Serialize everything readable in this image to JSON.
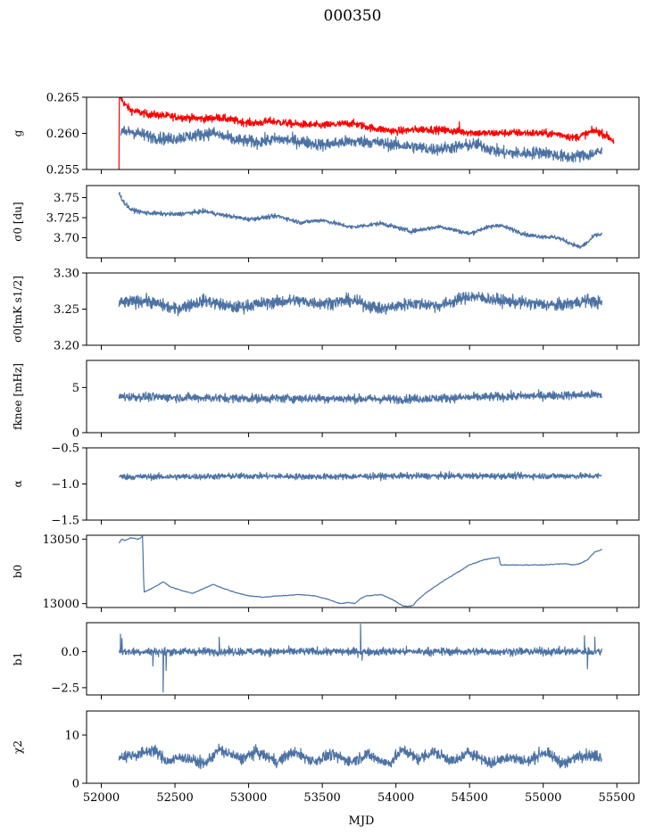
{
  "figure": {
    "title": "000350",
    "xlabel": "MJD"
  },
  "chart_data": [
    {
      "id": "g",
      "type": "line",
      "ylabel": "g",
      "xlim": [
        51900,
        55650
      ],
      "ylim": [
        0.255,
        0.265
      ],
      "yticks": [
        0.255,
        0.26,
        0.265
      ],
      "ytick_labels": [
        "0.255",
        "0.260",
        "0.265"
      ],
      "series": [
        {
          "color": "#ff0000",
          "style": "noisy",
          "x": [
            52120,
            52130,
            52160,
            52200,
            52300,
            52500,
            52700,
            52800,
            52950,
            53050,
            53150,
            53300,
            53500,
            53700,
            53850,
            54000,
            54200,
            54400,
            54600,
            54800,
            55000,
            55100,
            55150,
            55200,
            55250,
            55300,
            55350,
            55400,
            55450,
            55480
          ],
          "y": [
            0.2645,
            0.265,
            0.264,
            0.2632,
            0.2627,
            0.2623,
            0.262,
            0.2622,
            0.2616,
            0.2614,
            0.2617,
            0.2613,
            0.2611,
            0.2614,
            0.2607,
            0.2603,
            0.2606,
            0.2603,
            0.26,
            0.2601,
            0.26,
            0.2599,
            0.2597,
            0.2594,
            0.2596,
            0.26,
            0.2604,
            0.26,
            0.2594,
            0.2589
          ],
          "noise": 0.0005,
          "spikes": [
            [
              52120,
              0.255
            ],
            [
              52125,
              0.265
            ],
            [
              54330,
              0.261
            ],
            [
              54430,
              0.2616
            ]
          ]
        },
        {
          "color": "#4c72a4",
          "style": "noisy",
          "x": [
            52130,
            52200,
            52300,
            52450,
            52600,
            52750,
            52900,
            53050,
            53200,
            53350,
            53500,
            53650,
            53800,
            53950,
            54100,
            54250,
            54400,
            54550,
            54700,
            54850,
            55000,
            55150,
            55300,
            55400
          ],
          "y": [
            0.26,
            0.2603,
            0.2597,
            0.2592,
            0.2596,
            0.2601,
            0.2591,
            0.2588,
            0.2592,
            0.2589,
            0.2584,
            0.2588,
            0.2589,
            0.2585,
            0.2582,
            0.2578,
            0.2581,
            0.2585,
            0.2574,
            0.2572,
            0.2574,
            0.2567,
            0.257,
            0.2575
          ],
          "noise": 0.0008
        }
      ]
    },
    {
      "id": "sigma0_du",
      "type": "line",
      "ylabel": "σ0 [du]",
      "xlim": [
        51900,
        55650
      ],
      "ylim": [
        3.675,
        3.765
      ],
      "yticks": [
        3.7,
        3.725,
        3.75
      ],
      "ytick_labels": [
        "3.70",
        "3.725",
        "3.75"
      ],
      "series": [
        {
          "color": "#4c72a4",
          "style": "noisy",
          "x": [
            52120,
            52150,
            52200,
            52300,
            52500,
            52700,
            52800,
            53000,
            53200,
            53350,
            53500,
            53700,
            53900,
            54100,
            54300,
            54500,
            54600,
            54700,
            54900,
            55100,
            55200,
            55250,
            55300,
            55350,
            55400
          ],
          "y": [
            3.756,
            3.745,
            3.735,
            3.731,
            3.729,
            3.733,
            3.729,
            3.723,
            3.727,
            3.719,
            3.722,
            3.713,
            3.718,
            3.708,
            3.714,
            3.705,
            3.712,
            3.716,
            3.703,
            3.7,
            3.692,
            3.688,
            3.694,
            3.703,
            3.704
          ],
          "noise": 0.0025
        }
      ]
    },
    {
      "id": "sigma0_mk",
      "type": "line",
      "ylabel": "σ0[mK s1/2]",
      "xlim": [
        51900,
        55650
      ],
      "ylim": [
        3.2,
        3.3
      ],
      "yticks": [
        3.2,
        3.25,
        3.3
      ],
      "ytick_labels": [
        "3.20",
        "3.25",
        "3.30"
      ],
      "series": [
        {
          "color": "#4c72a4",
          "style": "noisy",
          "x": [
            52120,
            52300,
            52500,
            52700,
            52900,
            53100,
            53300,
            53500,
            53700,
            53900,
            54100,
            54300,
            54500,
            54700,
            54900,
            55100,
            55300,
            55400
          ],
          "y": [
            3.258,
            3.262,
            3.25,
            3.262,
            3.252,
            3.258,
            3.262,
            3.258,
            3.262,
            3.25,
            3.258,
            3.255,
            3.268,
            3.262,
            3.258,
            3.255,
            3.262,
            3.258
          ],
          "noise": 0.008
        }
      ]
    },
    {
      "id": "fknee",
      "type": "line",
      "ylabel": "fknee [mHz]",
      "xlim": [
        51900,
        55650
      ],
      "ylim": [
        0,
        8
      ],
      "yticks": [
        0,
        5
      ],
      "ytick_labels": [
        "0",
        "5"
      ],
      "series": [
        {
          "color": "#4c72a4",
          "style": "noisy",
          "x": [
            52120,
            52500,
            53000,
            53500,
            54000,
            54500,
            55000,
            55400
          ],
          "y": [
            4.0,
            3.9,
            3.8,
            3.8,
            3.7,
            3.9,
            4.1,
            4.2
          ],
          "noise": 0.45
        }
      ]
    },
    {
      "id": "alpha",
      "type": "line",
      "ylabel": "α",
      "xlim": [
        51900,
        55650
      ],
      "ylim": [
        -1.5,
        -0.5
      ],
      "yticks": [
        -1.5,
        -1.0,
        -0.5
      ],
      "ytick_labels": [
        "−1.5",
        "−1.0",
        "−0.5"
      ],
      "series": [
        {
          "color": "#4c72a4",
          "style": "noisy",
          "x": [
            52120,
            52500,
            53000,
            53500,
            54000,
            54500,
            55000,
            55400
          ],
          "y": [
            -0.9,
            -0.9,
            -0.89,
            -0.9,
            -0.89,
            -0.89,
            -0.89,
            -0.89
          ],
          "noise": 0.04
        }
      ]
    },
    {
      "id": "b0",
      "type": "line",
      "ylabel": "b0",
      "xlim": [
        51900,
        55650
      ],
      "ylim": [
        12997,
        13053
      ],
      "yticks": [
        13000,
        13050
      ],
      "ytick_labels": [
        "13000",
        "13050"
      ],
      "series": [
        {
          "color": "#4c72a4",
          "style": "smooth",
          "x": [
            52120,
            52140,
            52160,
            52200,
            52250,
            52280,
            52290,
            52330,
            52380,
            52420,
            52470,
            52550,
            52620,
            52700,
            52760,
            52800,
            52900,
            53000,
            53100,
            53200,
            53350,
            53450,
            53550,
            53620,
            53680,
            53720,
            53760,
            53800,
            53900,
            53980,
            54050,
            54100,
            54120,
            54140,
            54200,
            54300,
            54400,
            54500,
            54600,
            54700,
            54710,
            54800,
            55000,
            55150,
            55200,
            55250,
            55300,
            55350,
            55400
          ],
          "y": [
            13047,
            13050,
            13049,
            13051,
            13050,
            13052,
            13009,
            13011,
            13014,
            13017,
            13013,
            13010,
            13008,
            13012,
            13015,
            13013,
            13009,
            13006,
            13005,
            13006,
            13007,
            13006,
            13003,
            13000,
            13001,
            13000,
            13004,
            13006,
            13007,
            13003,
            12998,
            12998,
            12999,
            13002,
            13008,
            13016,
            13023,
            13030,
            13034,
            13036,
            13030,
            13030,
            13030,
            13031,
            13030,
            13031,
            13034,
            13040,
            13042
          ],
          "noise": 0.5
        }
      ]
    },
    {
      "id": "b1",
      "type": "line",
      "ylabel": "b1",
      "xlim": [
        51900,
        55650
      ],
      "ylim": [
        -3.0,
        2.0
      ],
      "yticks": [
        -2.5,
        0.0
      ],
      "ytick_labels": [
        "−2.5",
        "0.0"
      ],
      "series": [
        {
          "color": "#4c72a4",
          "style": "noisy",
          "x": [
            52120,
            52500,
            53000,
            53500,
            54000,
            54500,
            55000,
            55400
          ],
          "y": [
            0.0,
            0.0,
            0.0,
            0.0,
            0.0,
            0.0,
            0.0,
            0.0
          ],
          "noise": 0.25,
          "spikes": [
            [
              52130,
              1.2
            ],
            [
              52140,
              0.9
            ],
            [
              52350,
              -1.0
            ],
            [
              52420,
              -2.8
            ],
            [
              52440,
              -1.3
            ],
            [
              52800,
              1.0
            ],
            [
              53760,
              1.9
            ],
            [
              53770,
              -0.6
            ],
            [
              55280,
              1.1
            ],
            [
              55300,
              -1.2
            ],
            [
              55350,
              1.0
            ]
          ]
        }
      ]
    },
    {
      "id": "chi2",
      "type": "line",
      "ylabel": "χ2",
      "xlim": [
        51900,
        55650
      ],
      "ylim": [
        0,
        15
      ],
      "yticks": [
        0,
        10
      ],
      "ytick_labels": [
        "0",
        "10"
      ],
      "series": [
        {
          "color": "#4c72a4",
          "style": "noisy",
          "x": [
            52120,
            52250,
            52350,
            52450,
            52550,
            52700,
            52800,
            52950,
            53050,
            53200,
            53300,
            53450,
            53550,
            53700,
            53800,
            53950,
            54050,
            54150,
            54250,
            54400,
            54500,
            54650,
            54750,
            54900,
            55000,
            55150,
            55250,
            55400
          ],
          "y": [
            5.5,
            6.0,
            7.0,
            4.5,
            5.5,
            4.0,
            7.0,
            5.0,
            6.5,
            4.5,
            6.5,
            4.5,
            6.0,
            4.5,
            6.0,
            4.0,
            7.0,
            5.0,
            6.5,
            4.5,
            6.5,
            4.0,
            5.5,
            4.5,
            6.5,
            4.0,
            6.0,
            5.5
          ],
          "noise": 1.1
        }
      ]
    }
  ],
  "shared_x": {
    "ticks": [
      52000,
      52500,
      53000,
      53500,
      54000,
      54500,
      55000,
      55500
    ],
    "tick_labels": [
      "52000",
      "52500",
      "53000",
      "53500",
      "54000",
      "54500",
      "55000",
      "55500"
    ]
  }
}
